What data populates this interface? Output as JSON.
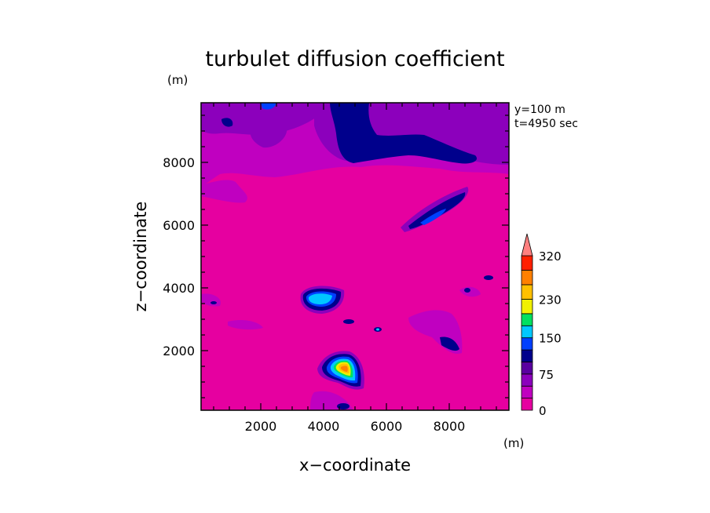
{
  "chart_data": {
    "type": "heatmap",
    "title": "turbulet diffusion coefficient",
    "xlabel": "x−coordinate",
    "ylabel": "z−coordinate",
    "x_unit": "(m)",
    "y_unit": "(m)",
    "info_line1": "y=100 m",
    "info_line2": "t=4950 sec",
    "xlim": [
      100,
      9900
    ],
    "ylim": [
      100,
      9900
    ],
    "x_ticks": [
      2000,
      4000,
      6000,
      8000
    ],
    "y_ticks": [
      2000,
      4000,
      6000,
      8000
    ],
    "colorbar": {
      "levels": [
        0,
        25,
        50,
        75,
        100,
        125,
        150,
        175,
        200,
        230,
        260,
        290,
        320
      ],
      "colors": [
        "#e600a0",
        "#c000c0",
        "#8c00bc",
        "#5a00a0",
        "#00008c",
        "#0040ff",
        "#00c8ff",
        "#00e060",
        "#f0f000",
        "#ffc000",
        "#ff8000",
        "#ff2000",
        "#ff8080"
      ],
      "labels": [
        "0",
        "75",
        "150",
        "230",
        "320"
      ],
      "label_values": [
        0,
        75,
        150,
        230,
        320
      ],
      "extend": "max"
    },
    "grid": false
  }
}
